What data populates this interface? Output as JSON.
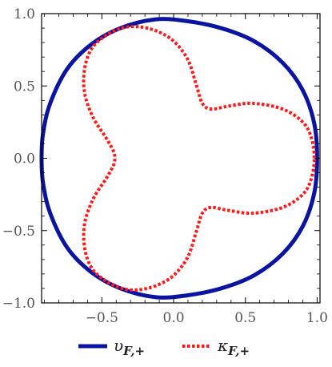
{
  "chart_data": {
    "type": "line",
    "title": "",
    "xlabel": "",
    "ylabel": "",
    "xlim": [
      -0.92,
      1.02
    ],
    "ylim": [
      -1.0,
      1.0
    ],
    "xticks": [
      -0.5,
      0.0,
      0.5,
      1.0
    ],
    "xtick_labels": [
      "−0.5",
      "0.0",
      "0.5",
      "1.0"
    ],
    "yticks": [
      -1.0,
      -0.5,
      0.0,
      0.5,
      1.0
    ],
    "ytick_labels": [
      "−1.0",
      "−0.5",
      "0.0",
      "0.5",
      "1.0"
    ],
    "grid": false,
    "frame": true,
    "legend_position": "bottom",
    "series": [
      {
        "name": "υF,+",
        "legend_symbol": "υ",
        "legend_subscript": "F,+",
        "color": "#0a14a0",
        "style": "solid",
        "closed": true,
        "points": [
          [
            1.0,
            0.0
          ],
          [
            0.98,
            0.24
          ],
          [
            0.9,
            0.47
          ],
          [
            0.76,
            0.66
          ],
          [
            0.56,
            0.81
          ],
          [
            0.33,
            0.9
          ],
          [
            0.08,
            0.95
          ],
          [
            -0.13,
            0.96
          ],
          [
            -0.37,
            0.9
          ],
          [
            -0.57,
            0.79
          ],
          [
            -0.74,
            0.62
          ],
          [
            -0.86,
            0.38
          ],
          [
            -0.91,
            0.17
          ],
          [
            -0.92,
            0.0
          ],
          [
            -0.91,
            -0.17
          ],
          [
            -0.86,
            -0.38
          ],
          [
            -0.74,
            -0.62
          ],
          [
            -0.57,
            -0.79
          ],
          [
            -0.37,
            -0.9
          ],
          [
            -0.13,
            -0.96
          ],
          [
            0.08,
            -0.95
          ],
          [
            0.33,
            -0.9
          ],
          [
            0.56,
            -0.81
          ],
          [
            0.76,
            -0.66
          ],
          [
            0.9,
            -0.47
          ],
          [
            0.98,
            -0.24
          ]
        ]
      },
      {
        "name": "κF,+",
        "legend_symbol": "κ",
        "legend_subscript": "F,+",
        "color": "#ff1a1a",
        "style": "dotted",
        "closed": true,
        "points": [
          [
            0.98,
            0.0
          ],
          [
            0.96,
            0.14
          ],
          [
            0.9,
            0.25
          ],
          [
            0.76,
            0.34
          ],
          [
            0.55,
            0.38
          ],
          [
            0.38,
            0.36
          ],
          [
            0.26,
            0.34
          ],
          [
            0.2,
            0.38
          ],
          [
            0.16,
            0.5
          ],
          [
            0.1,
            0.68
          ],
          [
            0.0,
            0.81
          ],
          [
            -0.12,
            0.88
          ],
          [
            -0.25,
            0.91
          ],
          [
            -0.36,
            0.9
          ],
          [
            -0.47,
            0.85
          ],
          [
            -0.57,
            0.76
          ],
          [
            -0.62,
            0.62
          ],
          [
            -0.62,
            0.45
          ],
          [
            -0.56,
            0.28
          ],
          [
            -0.47,
            0.14
          ],
          [
            -0.42,
            0.05
          ],
          [
            -0.41,
            0.0
          ],
          [
            -0.42,
            -0.05
          ],
          [
            -0.47,
            -0.14
          ],
          [
            -0.56,
            -0.28
          ],
          [
            -0.62,
            -0.45
          ],
          [
            -0.62,
            -0.62
          ],
          [
            -0.57,
            -0.76
          ],
          [
            -0.47,
            -0.85
          ],
          [
            -0.36,
            -0.9
          ],
          [
            -0.25,
            -0.91
          ],
          [
            -0.12,
            -0.88
          ],
          [
            0.0,
            -0.81
          ],
          [
            0.1,
            -0.68
          ],
          [
            0.16,
            -0.5
          ],
          [
            0.2,
            -0.38
          ],
          [
            0.26,
            -0.34
          ],
          [
            0.38,
            -0.36
          ],
          [
            0.55,
            -0.38
          ],
          [
            0.76,
            -0.34
          ],
          [
            0.9,
            -0.25
          ],
          [
            0.96,
            -0.14
          ]
        ]
      }
    ]
  }
}
